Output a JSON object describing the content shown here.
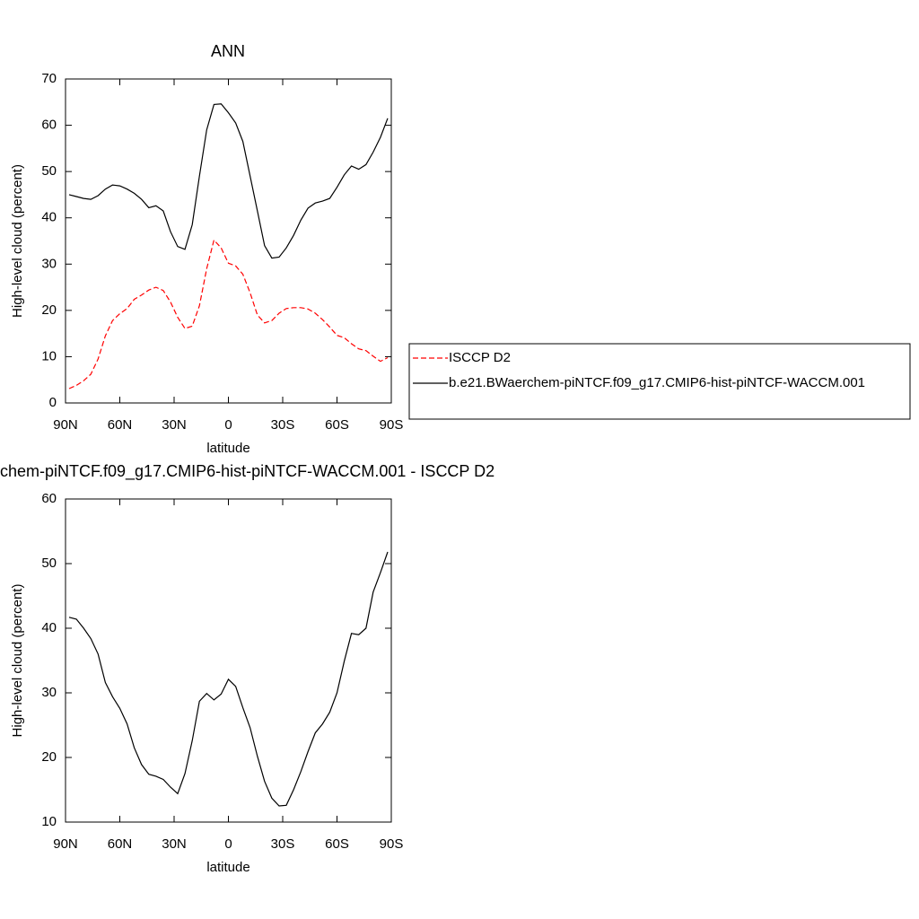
{
  "chart_data": [
    {
      "type": "line",
      "title": "ANN",
      "xlabel": "latitude",
      "ylabel": "High-level cloud (percent)",
      "x": [
        88,
        84,
        80,
        76,
        72,
        68,
        64,
        60,
        56,
        52,
        48,
        44,
        40,
        36,
        32,
        28,
        24,
        20,
        16,
        12,
        8,
        4,
        0,
        -4,
        -8,
        -12,
        -16,
        -20,
        -24,
        -28,
        -32,
        -36,
        -40,
        -44,
        -48,
        -52,
        -56,
        -60,
        -64,
        -68,
        -72,
        -76,
        -80,
        -84,
        -88
      ],
      "xlim": [
        90,
        -90
      ],
      "xticks": [
        {
          "value": 90,
          "label": "90N"
        },
        {
          "value": 60,
          "label": "60N"
        },
        {
          "value": 30,
          "label": "30N"
        },
        0,
        {
          "value": -30,
          "label": "30S"
        },
        {
          "value": -60,
          "label": "60S"
        },
        {
          "value": -90,
          "label": "90S"
        }
      ],
      "ylim": [
        0,
        70
      ],
      "yticks": [
        0,
        10,
        20,
        30,
        40,
        50,
        60,
        70
      ],
      "legend": "right",
      "series": [
        {
          "name": "ISCCP D2",
          "color": "#ff0000",
          "dash": true,
          "values": [
            3.1,
            3.8,
            4.8,
            6.2,
            9.5,
            14.5,
            17.8,
            19.3,
            20.4,
            22.4,
            23.3,
            24.4,
            25,
            24.3,
            21.8,
            18.5,
            16.1,
            16.6,
            21,
            29,
            35.2,
            33.5,
            30.2,
            29.6,
            27.8,
            23.8,
            19,
            17.3,
            17.8,
            19.4,
            20.4,
            20.6,
            20.6,
            20.3,
            19.4,
            18,
            16.4,
            14.6,
            14.1,
            12.8,
            11.7,
            11.3,
            10.1,
            9,
            9.8
          ]
        },
        {
          "name": "b.e21.BWaerchem-piNTCF.f09_g17.CMIP6-hist-piNTCF-WACCM.001",
          "color": "#000000",
          "dash": false,
          "values": [
            45,
            44.6,
            44.2,
            44,
            44.8,
            46.2,
            47.1,
            46.9,
            46.2,
            45.3,
            44,
            42.2,
            42.6,
            41.5,
            37,
            33.8,
            33.2,
            38.5,
            49,
            59,
            64.5,
            64.6,
            62.7,
            60.5,
            56.5,
            49,
            41.5,
            34,
            31.3,
            31.5,
            33.5,
            36.2,
            39.5,
            42.1,
            43.2,
            43.6,
            44.2,
            46.6,
            49.3,
            51.2,
            50.5,
            51.5,
            54.2,
            57.4,
            61.5
          ]
        }
      ]
    },
    {
      "type": "line",
      "title": "chem-piNTCF.f09_g17.CMIP6-hist-piNTCF-WACCM.001 - ISCCP D2",
      "xlabel": "latitude",
      "ylabel": "High-level cloud (percent)",
      "x": [
        88,
        84,
        80,
        76,
        72,
        68,
        64,
        60,
        56,
        52,
        48,
        44,
        40,
        36,
        32,
        28,
        24,
        20,
        16,
        12,
        8,
        4,
        0,
        -4,
        -8,
        -12,
        -16,
        -20,
        -24,
        -28,
        -32,
        -36,
        -40,
        -44,
        -48,
        -52,
        -56,
        -60,
        -64,
        -68,
        -72,
        -76,
        -80,
        -84,
        -88
      ],
      "xlim": [
        90,
        -90
      ],
      "xticks": [
        {
          "value": 90,
          "label": "90N"
        },
        {
          "value": 60,
          "label": "60N"
        },
        {
          "value": 30,
          "label": "30N"
        },
        0,
        {
          "value": -30,
          "label": "30S"
        },
        {
          "value": -60,
          "label": "60S"
        },
        {
          "value": -90,
          "label": "90S"
        }
      ],
      "ylim": [
        10,
        60
      ],
      "yticks": [
        10,
        20,
        30,
        40,
        50,
        60
      ],
      "series": [
        {
          "color": "#000000",
          "dash": false,
          "values": [
            41.7,
            41.4,
            40,
            38.4,
            36,
            31.6,
            29.4,
            27.6,
            25.2,
            21.5,
            18.9,
            17.4,
            17.1,
            16.6,
            15.4,
            14.4,
            17.5,
            22.6,
            28.7,
            29.9,
            28.9,
            29.8,
            32.1,
            31,
            27.7,
            24.6,
            20.2,
            16.3,
            13.7,
            12.5,
            12.6,
            15,
            17.8,
            20.9,
            23.8,
            25.2,
            27,
            30,
            34.9,
            39.2,
            39,
            40,
            45.6,
            48.6,
            51.8
          ]
        }
      ]
    }
  ]
}
